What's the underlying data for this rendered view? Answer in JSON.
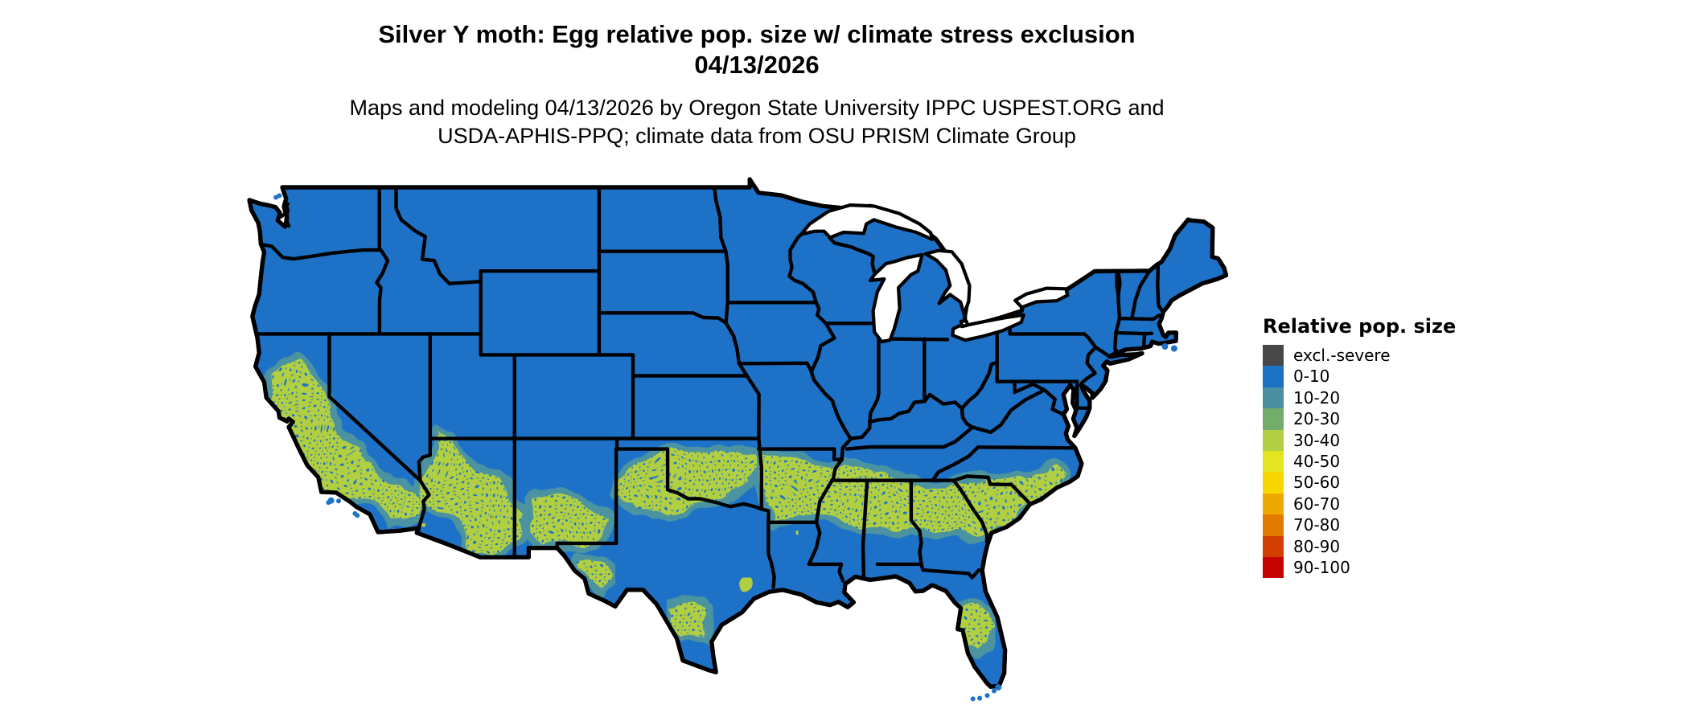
{
  "title": {
    "line1": "Silver Y moth: Egg relative pop. size w/ climate stress exclusion",
    "line2": "04/13/2026"
  },
  "subtitle": {
    "line1": "Maps and modeling 04/13/2026 by Oregon State University IPPC USPEST.ORG and",
    "line2": "USDA-APHIS-PPQ; climate data from OSU PRISM Climate Group"
  },
  "legend": {
    "title": "Relative pop. size",
    "entries": [
      {
        "label": "excl.-severe",
        "color": "#474747"
      },
      {
        "label": "0-10",
        "color": "#1d72c6"
      },
      {
        "label": "10-20",
        "color": "#4a90a0"
      },
      {
        "label": "20-30",
        "color": "#74ad6b"
      },
      {
        "label": "30-40",
        "color": "#b2cf43"
      },
      {
        "label": "40-50",
        "color": "#e2e51f"
      },
      {
        "label": "50-60",
        "color": "#f6d800"
      },
      {
        "label": "60-70",
        "color": "#eea900"
      },
      {
        "label": "70-80",
        "color": "#e07b00"
      },
      {
        "label": "80-90",
        "color": "#d33f00"
      },
      {
        "label": "90-100",
        "color": "#c60303"
      }
    ]
  },
  "map": {
    "background": "#ffffff",
    "border_color": "#000000",
    "land_color": "#1d72c8",
    "patch_color": "#b2cf43",
    "fringe_color": "#4b93a0",
    "water_color": "#ffffff"
  }
}
